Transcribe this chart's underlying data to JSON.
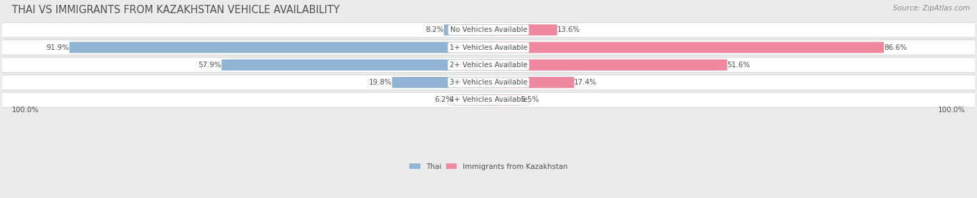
{
  "title": "THAI VS IMMIGRANTS FROM KAZAKHSTAN VEHICLE AVAILABILITY",
  "source": "Source: ZipAtlas.com",
  "categories": [
    "No Vehicles Available",
    "1+ Vehicles Available",
    "2+ Vehicles Available",
    "3+ Vehicles Available",
    "4+ Vehicles Available"
  ],
  "thai_values": [
    8.2,
    91.9,
    57.9,
    19.8,
    6.2
  ],
  "kazakh_values": [
    13.6,
    86.6,
    51.6,
    17.4,
    5.5
  ],
  "thai_color": "#92b4d4",
  "kazakh_color": "#f088a0",
  "thai_label": "Thai",
  "kazakh_label": "Immigrants from Kazakhstan",
  "bg_color": "#ebebeb",
  "row_bg_color": "#f8f8f8",
  "title_color": "#505050",
  "source_color": "#888888",
  "value_color": "#505050",
  "cat_label_color": "#505050",
  "axis_label": "100.0%",
  "title_fontsize": 10.5,
  "source_fontsize": 7.5,
  "bar_label_fontsize": 7.5,
  "category_fontsize": 7.5,
  "axis_fontsize": 7.5
}
